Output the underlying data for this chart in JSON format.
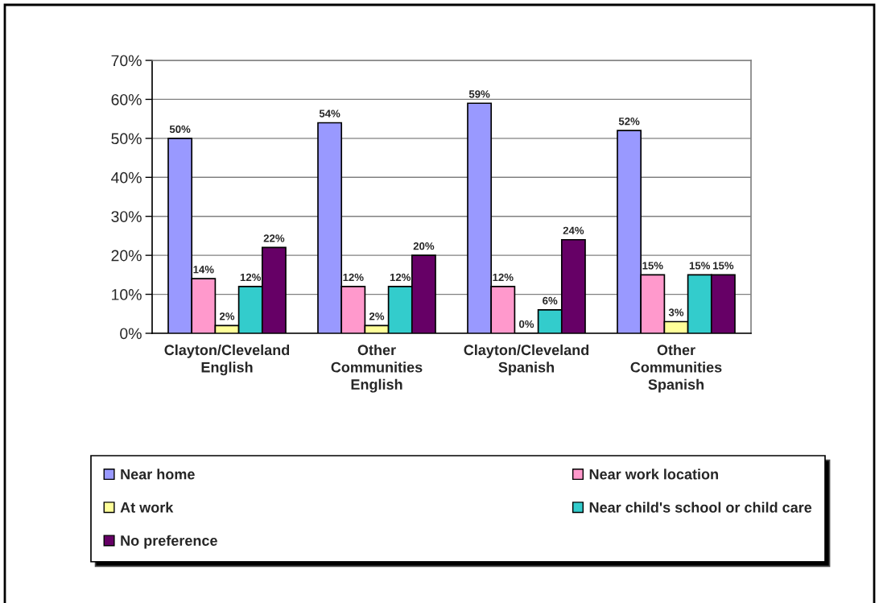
{
  "chart_data": {
    "type": "bar",
    "categories": [
      "Clayton/Cleveland\nEnglish",
      "Other\nCommunities\nEnglish",
      "Clayton/Cleveland\nSpanish",
      "Other\nCommunities\nSpanish"
    ],
    "series": [
      {
        "name": "Near home",
        "color": "#9999ff",
        "values": [
          50,
          54,
          59,
          52
        ],
        "value_labels": [
          "50%",
          "54%",
          "59%",
          "52%"
        ]
      },
      {
        "name": "Near work location",
        "color": "#ff99cc",
        "values": [
          14,
          12,
          12,
          15
        ],
        "value_labels": [
          "14%",
          "12%",
          "12%",
          "15%"
        ]
      },
      {
        "name": "At work",
        "color": "#ffff99",
        "values": [
          2,
          2,
          0,
          3
        ],
        "value_labels": [
          "2%",
          "2%",
          "0%",
          "3%"
        ]
      },
      {
        "name": "Near child's school or child care",
        "color": "#33cccc",
        "values": [
          12,
          12,
          6,
          15
        ],
        "value_labels": [
          "12%",
          "12%",
          "6%",
          "15%"
        ]
      },
      {
        "name": "No preference",
        "color": "#660066",
        "values": [
          22,
          20,
          24,
          15
        ],
        "value_labels": [
          "22%",
          "20%",
          "24%",
          "15%"
        ]
      }
    ],
    "ylim": [
      0,
      70
    ],
    "yticks": [
      {
        "value": 0,
        "label": "0%"
      },
      {
        "value": 10,
        "label": "10%"
      },
      {
        "value": 20,
        "label": "20%"
      },
      {
        "value": 30,
        "label": "30%"
      },
      {
        "value": 40,
        "label": "40%"
      },
      {
        "value": 50,
        "label": "50%"
      },
      {
        "value": 60,
        "label": "60%"
      },
      {
        "value": 70,
        "label": "70%"
      }
    ],
    "grid": "y",
    "legend": "bottom"
  }
}
